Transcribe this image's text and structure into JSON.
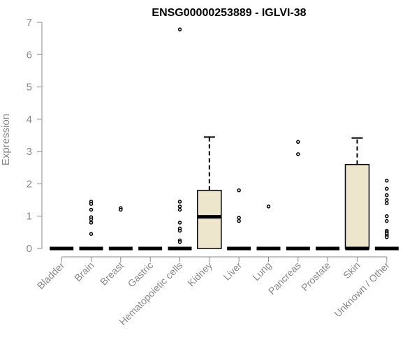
{
  "chart_data": {
    "type": "box",
    "title": "ENSG00000253889 - IGLVI-38",
    "xlabel": "",
    "ylabel": "Expression",
    "ylim": [
      0,
      7
    ],
    "yticks": [
      0,
      1,
      2,
      3,
      4,
      5,
      6,
      7
    ],
    "box_fill": "#ede6cc",
    "categories": [
      "Bladder",
      "Brain",
      "Breast",
      "Gastric",
      "Hematopoietic cells",
      "Kidney",
      "Liver",
      "Lung",
      "Pancreas",
      "Prostate",
      "Skin",
      "Unknown / Other"
    ],
    "boxes": [
      {
        "category": "Bladder",
        "q1": 0,
        "median": 0,
        "q3": 0,
        "whisker_low": 0,
        "whisker_high": 0,
        "outliers": []
      },
      {
        "category": "Brain",
        "q1": 0,
        "median": 0,
        "q3": 0,
        "whisker_low": 0,
        "whisker_high": 0,
        "outliers": [
          1.45,
          1.38,
          1.2,
          0.97,
          0.9,
          0.8,
          0.45
        ]
      },
      {
        "category": "Breast",
        "q1": 0,
        "median": 0,
        "q3": 0,
        "whisker_low": 0,
        "whisker_high": 0,
        "outliers": [
          1.25,
          1.2
        ]
      },
      {
        "category": "Gastric",
        "q1": 0,
        "median": 0,
        "q3": 0,
        "whisker_low": 0,
        "whisker_high": 0,
        "outliers": []
      },
      {
        "category": "Hematopoietic cells",
        "q1": 0,
        "median": 0,
        "q3": 0,
        "whisker_low": 0,
        "whisker_high": 0,
        "outliers": [
          6.78,
          1.45,
          1.3,
          1.2,
          0.8,
          0.62,
          0.55,
          0.25,
          0.2
        ]
      },
      {
        "category": "Kidney",
        "q1": 0,
        "median": 0.98,
        "q3": 1.8,
        "whisker_low": 0,
        "whisker_high": 3.45,
        "outliers": []
      },
      {
        "category": "Liver",
        "q1": 0,
        "median": 0,
        "q3": 0,
        "whisker_low": 0,
        "whisker_high": 0,
        "outliers": [
          1.8,
          0.95,
          0.85
        ]
      },
      {
        "category": "Lung",
        "q1": 0,
        "median": 0,
        "q3": 0,
        "whisker_low": 0,
        "whisker_high": 0,
        "outliers": [
          1.3
        ]
      },
      {
        "category": "Pancreas",
        "q1": 0,
        "median": 0,
        "q3": 0,
        "whisker_low": 0,
        "whisker_high": 0,
        "outliers": [
          3.3,
          2.92
        ]
      },
      {
        "category": "Prostate",
        "q1": 0,
        "median": 0,
        "q3": 0,
        "whisker_low": 0,
        "whisker_high": 0,
        "outliers": []
      },
      {
        "category": "Skin",
        "q1": 0,
        "median": 0,
        "q3": 2.6,
        "whisker_low": 0,
        "whisker_high": 3.42,
        "outliers": []
      },
      {
        "category": "Unknown / Other",
        "q1": 0,
        "median": 0,
        "q3": 0,
        "whisker_low": 0,
        "whisker_high": 0,
        "outliers": [
          2.1,
          1.85,
          1.65,
          1.5,
          1.4,
          1.0,
          0.85,
          0.55,
          0.5,
          0.45,
          0.4,
          0.35
        ]
      }
    ]
  }
}
